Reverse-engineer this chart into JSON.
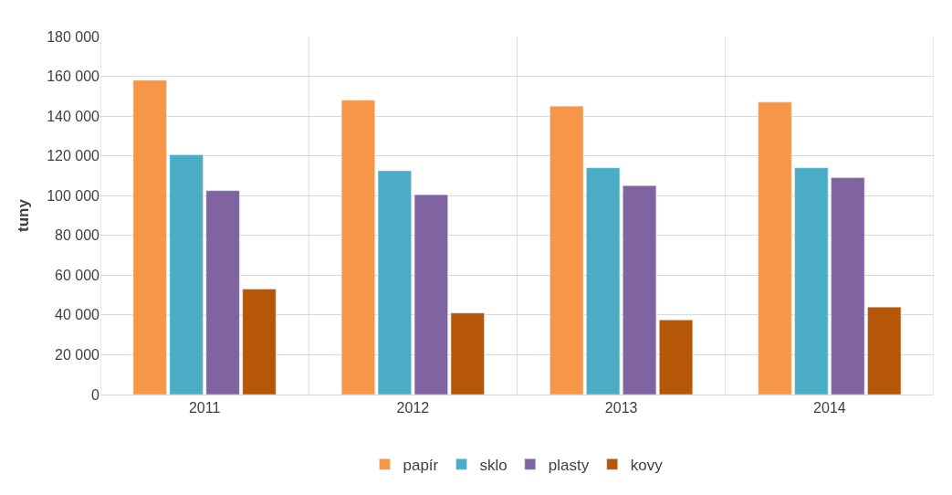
{
  "chart_data": {
    "type": "bar",
    "ylabel": "tuny",
    "categories": [
      "2011",
      "2012",
      "2013",
      "2014"
    ],
    "series": [
      {
        "name": "papír",
        "color": "#f79646",
        "values": [
          158000,
          148000,
          145000,
          147000
        ]
      },
      {
        "name": "sklo",
        "color": "#4bacc6",
        "values": [
          120500,
          112500,
          114000,
          114000
        ]
      },
      {
        "name": "plasty",
        "color": "#8064a2",
        "values": [
          102500,
          100500,
          105000,
          109000
        ]
      },
      {
        "name": "kovy",
        "color": "#b65708",
        "values": [
          53000,
          41000,
          37500,
          44000
        ]
      }
    ],
    "ylim": [
      0,
      180000
    ],
    "yticks": [
      {
        "value": 0,
        "label": "0"
      },
      {
        "value": 20000,
        "label": "20 000"
      },
      {
        "value": 40000,
        "label": "40 000"
      },
      {
        "value": 60000,
        "label": "60 000"
      },
      {
        "value": 80000,
        "label": "80 000"
      },
      {
        "value": 100000,
        "label": "100 000"
      },
      {
        "value": 120000,
        "label": "120 000"
      },
      {
        "value": 140000,
        "label": "140 000"
      },
      {
        "value": 160000,
        "label": "160 000"
      },
      {
        "value": 180000,
        "label": "180 000"
      }
    ],
    "grid": true,
    "legend": "bottom"
  }
}
